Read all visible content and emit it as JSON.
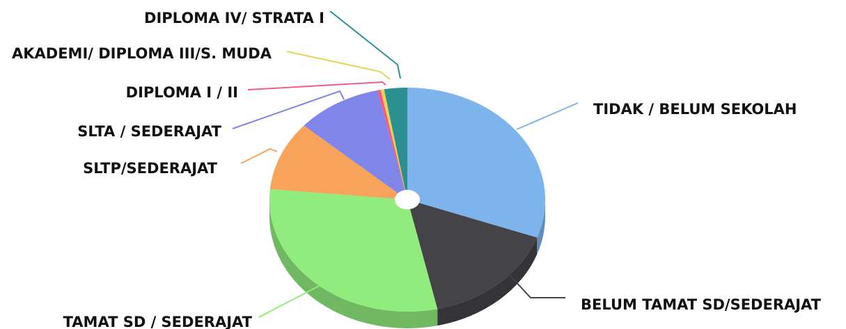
{
  "chart_data": {
    "type": "pie",
    "title": "",
    "legend": "none",
    "slices": [
      {
        "label": "TIDAK / BELUM SEKOLAH",
        "value": 30.5,
        "color": "#7db4ec"
      },
      {
        "label": "BELUM TAMAT SD/SEDERAJAT",
        "value": 16.0,
        "color": "#434348"
      },
      {
        "label": "TAMAT SD / SEDERAJAT",
        "value": 30.0,
        "color": "#90ed7d"
      },
      {
        "label": "SLTP/SEDERAJAT",
        "value": 10.0,
        "color": "#f7a35c"
      },
      {
        "label": "SLTA / SEDERAJAT",
        "value": 10.0,
        "color": "#8085e9"
      },
      {
        "label": "DIPLOMA I / II",
        "value": 0.4,
        "color": "#f15c80"
      },
      {
        "label": "AKADEMI/ DIPLOMA III/S. MUDA",
        "value": 0.4,
        "color": "#e4d354"
      },
      {
        "label": "DIPLOMA IV/ STRATA I",
        "value": 2.7,
        "color": "#2b908f"
      }
    ]
  }
}
